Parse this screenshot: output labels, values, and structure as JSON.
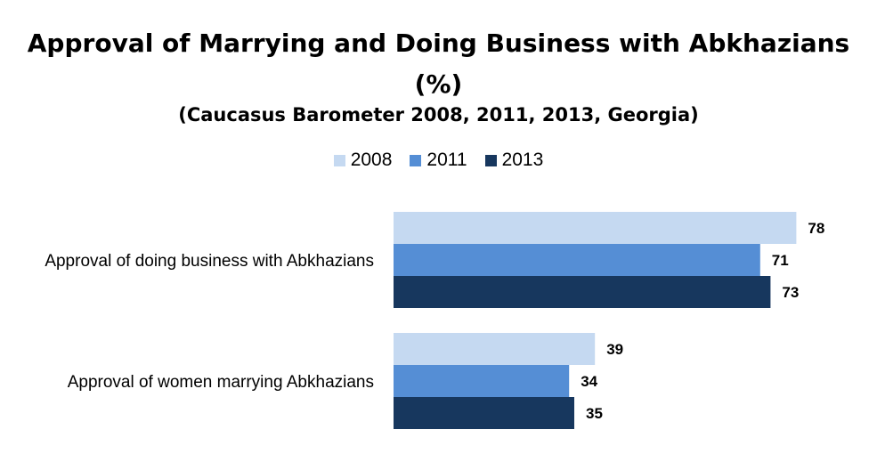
{
  "chart_data": {
    "type": "bar",
    "orientation": "horizontal",
    "title": "Approval of Marrying and Doing Business with Abkhazians (%)",
    "subtitle": "(Caucasus Barometer 2008, 2011, 2013, Georgia)",
    "categories": [
      "Approval of doing business with Abkhazians",
      "Approval of women marrying Abkhazians"
    ],
    "series": [
      {
        "name": "2008",
        "values": [
          78,
          39
        ],
        "color": "#c5d9f1"
      },
      {
        "name": "2011",
        "values": [
          71,
          34
        ],
        "color": "#558ed5"
      },
      {
        "name": "2013",
        "values": [
          73,
          35
        ],
        "color": "#17375e"
      }
    ],
    "xlim": [
      0,
      100
    ],
    "grid": false,
    "legend_position": "top-center"
  }
}
